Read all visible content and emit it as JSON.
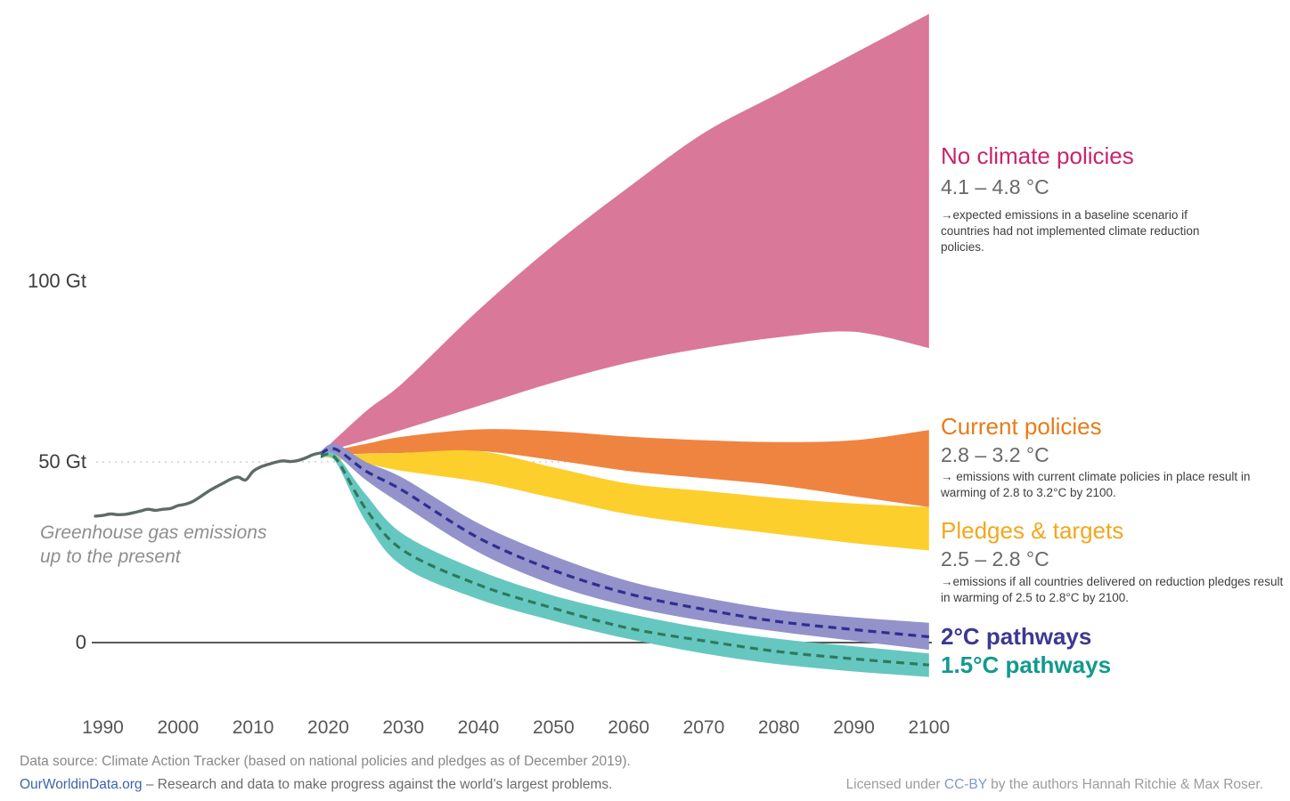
{
  "chart_data": {
    "type": "area",
    "title": "",
    "unit": "Gt greenhouse gas emissions per year",
    "x_axis": {
      "ticks": [
        1990,
        2000,
        2010,
        2020,
        2030,
        2040,
        2050,
        2060,
        2070,
        2080,
        2090,
        2100
      ]
    },
    "y_axis": {
      "ticks": [
        {
          "label": "100 Gt",
          "value": 100
        },
        {
          "label": "50 Gt",
          "value": 50
        },
        {
          "label": "0",
          "value": 0
        }
      ],
      "gridline_value": 50
    },
    "colors": {
      "gridline": "#cfcfcf",
      "axis": "#595959"
    },
    "historical": {
      "name": "Greenhouse gas emissions up to the present",
      "color": "#5f6b66",
      "years": [
        1989,
        1990,
        1991,
        1992,
        1993,
        1994,
        1995,
        1996,
        1997,
        1998,
        1999,
        2000,
        2001,
        2002,
        2003,
        2004,
        2005,
        2006,
        2007,
        2008,
        2009,
        2010,
        2011,
        2012,
        2013,
        2014,
        2015,
        2016,
        2017,
        2018,
        2019
      ],
      "values": [
        35.0,
        35.2,
        35.6,
        35.4,
        35.5,
        35.9,
        36.4,
        36.9,
        36.6,
        36.9,
        37.1,
        37.9,
        38.3,
        39.1,
        40.4,
        41.8,
        43.0,
        44.1,
        45.2,
        45.8,
        45.0,
        47.4,
        48.6,
        49.3,
        49.9,
        50.3,
        50.1,
        50.4,
        51.1,
        52.0,
        52.5
      ]
    },
    "series": [
      {
        "id": "no-climate-policies",
        "name": "No climate policies",
        "temp_range": "4.1 – 4.8 °C",
        "note": "→expected emissions in a baseline scenario if countries had not implemented climate reduction policies.",
        "band_color": "#d97899",
        "label_color": "#c9246d",
        "years": [
          2019,
          2025,
          2030,
          2040,
          2050,
          2060,
          2070,
          2080,
          2090,
          2100
        ],
        "upper": [
          52.5,
          64,
          72,
          92,
          110,
          126,
          141,
          152,
          163,
          174
        ],
        "lower": [
          52.5,
          56,
          59,
          65.5,
          72,
          77.5,
          81.5,
          84.5,
          86,
          81.5
        ]
      },
      {
        "id": "current-policies",
        "name": "Current policies",
        "temp_range": "2.8 – 3.2 °C",
        "note": "→ emissions with current climate policies in place result in warming of 2.8 to 3.2°C by 2100.",
        "band_color": "#ef8440",
        "label_color": "#e87b1a",
        "years": [
          2019,
          2025,
          2030,
          2040,
          2050,
          2060,
          2070,
          2080,
          2090,
          2100
        ],
        "upper": [
          52.5,
          55,
          57,
          59,
          58.5,
          57,
          56,
          55.5,
          56,
          58.8
        ],
        "lower": [
          52,
          52.3,
          52.5,
          53,
          50.5,
          47.5,
          45.5,
          43.5,
          40.5,
          37.5
        ]
      },
      {
        "id": "pledges-targets",
        "name": "Pledges & targets",
        "temp_range": "2.5 – 2.8 °C",
        "note": "→emissions if all countries delivered on reduction pledges result in warming of 2.5 to 2.8°C by 2100.",
        "band_color": "#fccf2d",
        "label_color": "#f2a71e",
        "years": [
          2019,
          2025,
          2030,
          2040,
          2050,
          2060,
          2070,
          2080,
          2090,
          2100
        ],
        "upper": [
          52,
          52.2,
          52.5,
          53,
          48.5,
          44,
          42,
          40,
          38.5,
          37.5
        ],
        "lower": [
          51.5,
          49.5,
          47.5,
          44.5,
          40,
          35.5,
          32.5,
          30,
          27.5,
          25.5
        ]
      },
      {
        "id": "2c-pathways",
        "name": "2°C pathways",
        "band_color": "#9392cb",
        "line_color": "#2f2f8f",
        "label_color": "#3c3990",
        "years": [
          2019,
          2021,
          2025,
          2030,
          2040,
          2050,
          2060,
          2070,
          2080,
          2090,
          2100
        ],
        "upper": [
          53,
          55,
          50,
          45.5,
          33,
          24,
          17,
          12.5,
          9,
          7,
          5.5
        ],
        "lower": [
          51.5,
          52,
          45,
          38,
          25,
          16,
          10,
          6,
          3,
          0.5,
          -2
        ],
        "median": [
          52.3,
          53.5,
          47.5,
          42,
          29,
          20,
          13.5,
          9.2,
          5.8,
          3.6,
          1.6
        ]
      },
      {
        "id": "1-5c-pathways",
        "name": "1.5°C pathways",
        "band_color": "#66c7c1",
        "line_color": "#2f7a5c",
        "label_color": "#129a8c",
        "years": [
          2019,
          2021,
          2025,
          2030,
          2040,
          2050,
          2060,
          2070,
          2080,
          2090,
          2100
        ],
        "upper": [
          52,
          52,
          41,
          30,
          20,
          13,
          8,
          4,
          1,
          -1,
          -3
        ],
        "lower": [
          51,
          50,
          33.5,
          21,
          12,
          6,
          1,
          -3,
          -6,
          -8,
          -9.5
        ],
        "median": [
          51.5,
          51,
          37,
          25.5,
          16,
          9.5,
          4,
          0.5,
          -2.5,
          -4.5,
          -6.2
        ]
      }
    ]
  },
  "annotations": {
    "historical_line1": "Greenhouse gas emissions",
    "historical_line2": "up to the present"
  },
  "footer": {
    "data_source": "Data source: Climate Action Tracker (based on national policies and pledges as of December 2019).",
    "owid_link": "OurWorldinData.org",
    "tagline": " – Research and data to make progress against the world’s largest problems.",
    "license_prefix": "Licensed under ",
    "license_link": "CC-BY",
    "license_suffix": " by the authors Hannah Ritchie & Max Roser."
  }
}
